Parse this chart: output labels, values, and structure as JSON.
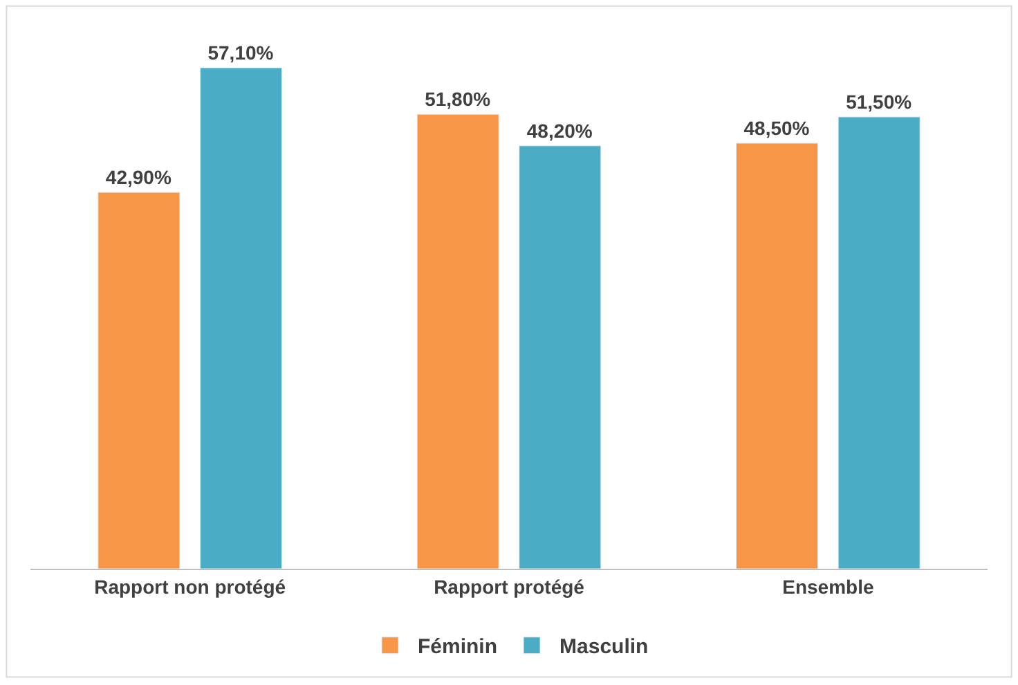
{
  "chart_data": {
    "type": "bar",
    "categories": [
      "Rapport non protégé",
      "Rapport protégé",
      "Ensemble"
    ],
    "series": [
      {
        "name": "Féminin",
        "color": "#f79646",
        "values": [
          42.9,
          51.8,
          48.5
        ],
        "value_labels": [
          "42,90%",
          "51,80%",
          "48,50%"
        ]
      },
      {
        "name": "Masculin",
        "color": "#4bacc6",
        "values": [
          57.1,
          48.2,
          51.5
        ],
        "value_labels": [
          "57,10%",
          "48,20%",
          "51,50%"
        ]
      }
    ],
    "legend": "bottom"
  }
}
